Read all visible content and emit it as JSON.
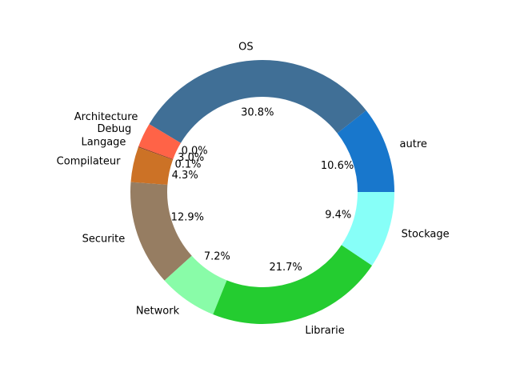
{
  "chart_data": {
    "type": "pie",
    "donut": true,
    "start_angle_deg": 0,
    "direction": "counterclockwise",
    "slices": [
      {
        "label": "autre",
        "value": 10.6,
        "pct_label": "10.6%",
        "color": "#1877cc"
      },
      {
        "label": "OS",
        "value": 30.8,
        "pct_label": "30.8%",
        "color": "#406f96"
      },
      {
        "label": "Architecture",
        "value": 0.0,
        "pct_label": "0.0%",
        "color": "#ff6e54"
      },
      {
        "label": "Debug",
        "value": 3.0,
        "pct_label": "3.0%",
        "color": "#ff6347"
      },
      {
        "label": "Langage",
        "value": 0.1,
        "pct_label": "0.1%",
        "color": "#8b3a1a"
      },
      {
        "label": "Compilateur",
        "value": 4.3,
        "pct_label": "4.3%",
        "color": "#cc7226"
      },
      {
        "label": "Securite",
        "value": 12.9,
        "pct_label": "12.9%",
        "color": "#967d62"
      },
      {
        "label": "Network",
        "value": 7.2,
        "pct_label": "7.2%",
        "color": "#89fca8"
      },
      {
        "label": "Librarie",
        "value": 21.7,
        "pct_label": "21.7%",
        "color": "#24cc30"
      },
      {
        "label": "Stockage",
        "value": 9.4,
        "pct_label": "9.4%",
        "color": "#87fff8"
      }
    ]
  }
}
